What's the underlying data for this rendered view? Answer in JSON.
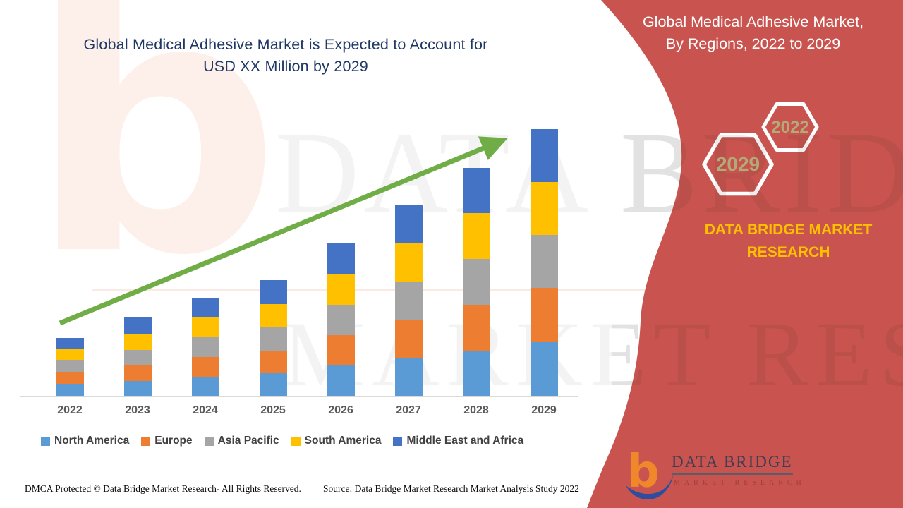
{
  "chart_title": {
    "line1": "Global Medical Adhesive Market is Expected to Account for",
    "line2": "USD XX Million by 2029"
  },
  "chart_data": {
    "type": "bar",
    "stacked": true,
    "title": "Global Medical Adhesive Market is Expected to Account for USD XX Million by 2029",
    "categories": [
      "2022",
      "2023",
      "2024",
      "2025",
      "2026",
      "2027",
      "2028",
      "2029"
    ],
    "series": [
      {
        "name": "North America",
        "color": "#5B9BD5",
        "values": [
          17,
          21,
          27,
          32,
          43,
          54,
          64,
          76
        ]
      },
      {
        "name": "Europe",
        "color": "#ED7D31",
        "values": [
          17,
          22,
          28,
          32,
          43,
          54,
          65,
          77
        ]
      },
      {
        "name": "Asia Pacific",
        "color": "#A5A5A5",
        "values": [
          17,
          22,
          28,
          33,
          43,
          54,
          65,
          75
        ]
      },
      {
        "name": "South America",
        "color": "#FFC000",
        "values": [
          16,
          23,
          28,
          33,
          43,
          54,
          65,
          75
        ]
      },
      {
        "name": "Middle East and Africa",
        "color": "#4472C4",
        "values": [
          15,
          23,
          27,
          34,
          44,
          55,
          64,
          75
        ]
      }
    ],
    "stack_totals": [
      82,
      111,
      138,
      164,
      216,
      271,
      323,
      378
    ],
    "units": "relative (no numeric value axis shown; values estimated from bar pixel heights, USD XX Million)",
    "ylabel": "",
    "xlabel": "",
    "grid": false,
    "legend_position": "bottom",
    "annotations": [
      "green upward trend arrow from 2022 toward 2029 bar top"
    ]
  },
  "side_panel": {
    "title_line1": "Global Medical Adhesive Market,",
    "title_line2": "By Regions, 2022 to 2029",
    "hex_large_year": "2029",
    "hex_small_year": "2022",
    "brand_line1": "DATA BRIDGE MARKET",
    "brand_line2": "RESEARCH",
    "logo_letter": "b",
    "logo_title": "DATA BRIDGE",
    "logo_subtitle": "MARKET RESEARCH"
  },
  "watermark": {
    "row1": "DATA BRIDGE",
    "row2": "MARKET RESEARCH",
    "letter": "b"
  },
  "footer": {
    "dmca": "DMCA Protected © Data Bridge Market Research- All Rights Reserved.",
    "source": "Source: Data Bridge Market Research Market Analysis Study 2022"
  },
  "colors": {
    "accent_red": "#C9544F",
    "title_blue": "#1F3864",
    "arrow_green": "#70AD47",
    "axis_gray": "#D9D9D9",
    "x_label_gray": "#595959",
    "legend_text_gray": "#404040",
    "brand_yellow": "#FFC000",
    "hex_year_text": "#B3AA79",
    "logo_orange": "#F0872A",
    "logo_blue": "#2D4D9E",
    "logo_navy": "#3D3D56"
  }
}
